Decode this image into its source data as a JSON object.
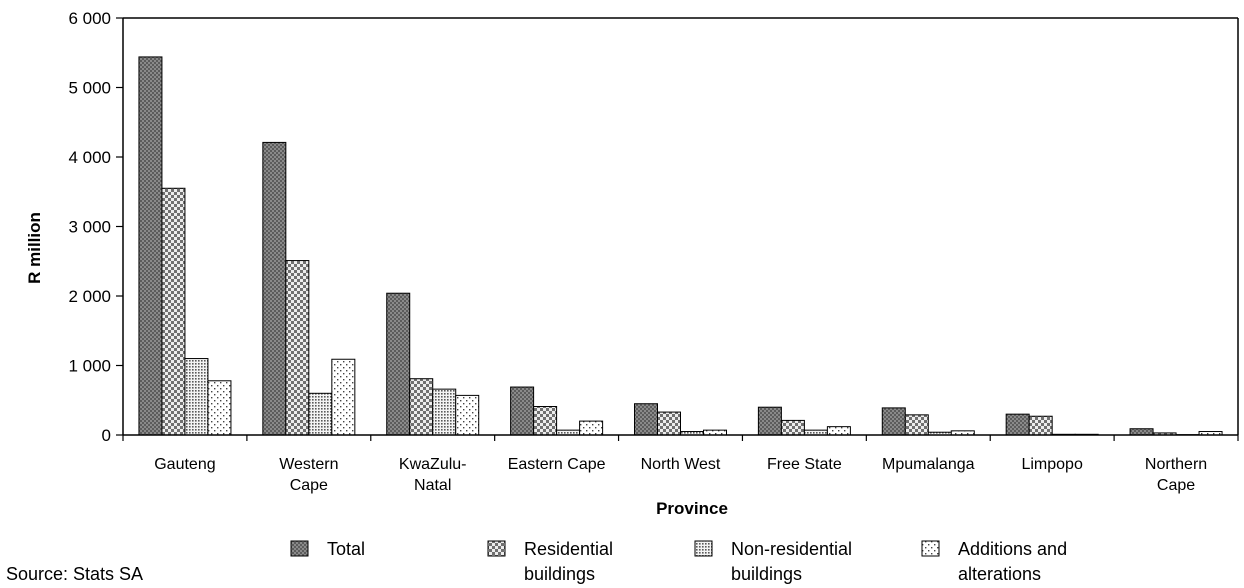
{
  "chart_data": {
    "type": "bar",
    "xlabel": "Province",
    "ylabel": "R million",
    "ylim": [
      0,
      6000
    ],
    "yticks": [
      "0",
      "1 000",
      "2 000",
      "3 000",
      "4 000",
      "5 000",
      "6 000"
    ],
    "categories": [
      [
        "Gauteng"
      ],
      [
        "Western",
        "Cape"
      ],
      [
        "KwaZulu-",
        "Natal"
      ],
      [
        "Eastern Cape"
      ],
      [
        "North West"
      ],
      [
        "Free State"
      ],
      [
        "Mpumalanga"
      ],
      [
        "Limpopo"
      ],
      [
        "Northern",
        "Cape"
      ]
    ],
    "series": [
      {
        "name": "Total",
        "pattern": "dense",
        "values": [
          5440,
          4210,
          2040,
          690,
          450,
          400,
          390,
          300,
          90
        ]
      },
      {
        "name": "Residential buildings",
        "pattern": "checker",
        "values": [
          3550,
          2510,
          810,
          410,
          330,
          210,
          290,
          270,
          30
        ]
      },
      {
        "name": "Non-residential buildings",
        "pattern": "dots",
        "values": [
          1100,
          600,
          660,
          70,
          50,
          70,
          40,
          10,
          5
        ]
      },
      {
        "name": "Additions and alterations",
        "pattern": "sparse",
        "values": [
          780,
          1090,
          570,
          200,
          70,
          120,
          60,
          10,
          50
        ]
      }
    ],
    "legend": [
      [
        "Total"
      ],
      [
        "Residential",
        "buildings"
      ],
      [
        "Non-residential",
        "buildings"
      ],
      [
        "Additions and",
        "alterations"
      ]
    ],
    "legend_position": "bottom",
    "grid": false,
    "source": "Source: Stats SA"
  }
}
